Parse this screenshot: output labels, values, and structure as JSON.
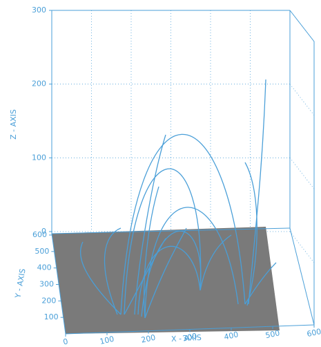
{
  "chart_data": {
    "type": "3d-line",
    "xlabel": "X - AXIS",
    "ylabel": "Y - AXIS",
    "zlabel": "Z - AXIS",
    "xlim": [
      0,
      600
    ],
    "xticks": [
      0,
      100,
      200,
      300,
      400,
      500,
      600
    ],
    "ylim": [
      0,
      600
    ],
    "yticks": [
      100,
      200,
      300,
      400,
      500,
      600
    ],
    "zlim": [
      0,
      300
    ],
    "zticks": [
      0,
      100,
      200,
      300
    ],
    "grid": true,
    "color": "#4a9fd8"
  }
}
